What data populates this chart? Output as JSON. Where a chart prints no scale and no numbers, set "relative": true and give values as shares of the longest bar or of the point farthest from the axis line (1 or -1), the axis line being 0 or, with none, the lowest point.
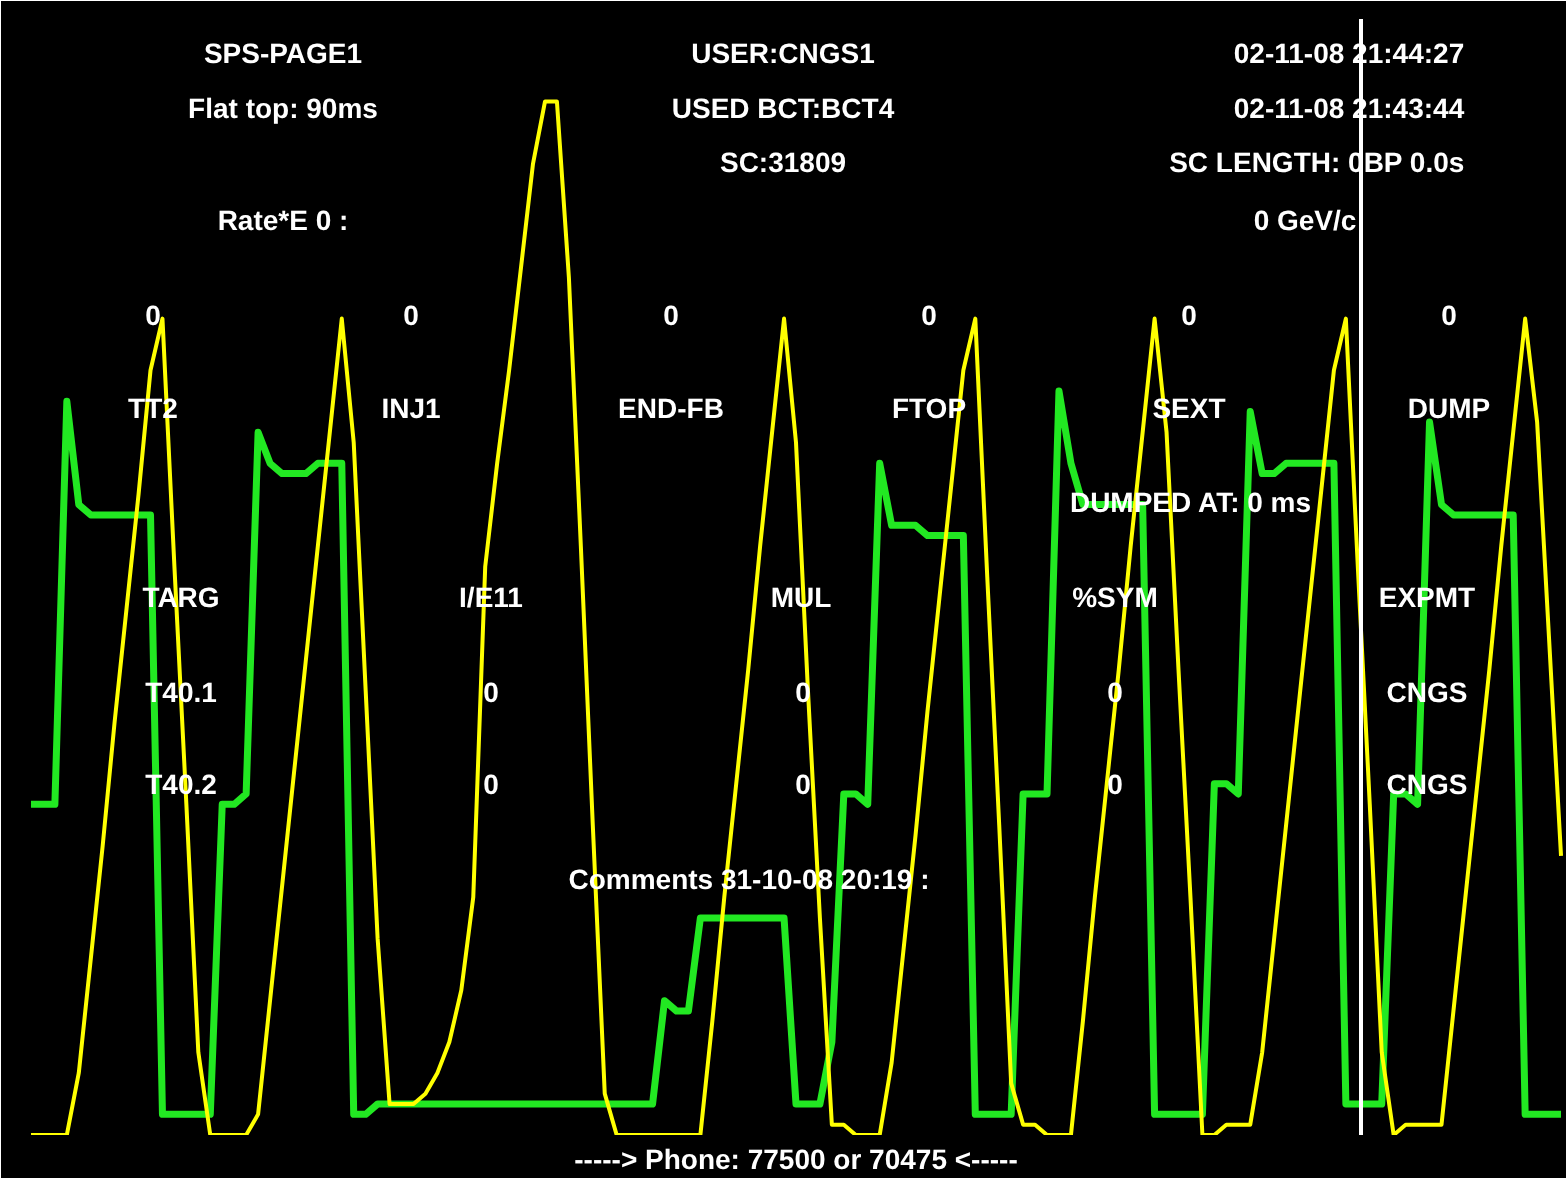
{
  "chart_data": {
    "type": "line",
    "relative": true,
    "title": "SPS-PAGE1",
    "annotations": [
      "USER:CNGS1",
      "02-11-08 21:44:27",
      "Flat top: 90ms",
      "USED BCT:BCT4",
      "02-11-08 21:43:44",
      "SC:31809",
      "SC LENGTH: 0BP 0.0s",
      "Rate*E 0 :",
      "0 GeV/c",
      "0",
      "0",
      "0",
      "0",
      "0",
      "0",
      "TT2",
      "INJ1",
      "END-FB",
      "FTOP",
      "SEXT",
      "DUMP",
      "DUMPED AT: 0 ms",
      "TARG",
      "I/E11",
      "MUL",
      "%SYM",
      "EXPMT",
      "T40.1",
      "0",
      "0",
      "0",
      "CNGS",
      "T40.2",
      "0",
      "0",
      "0",
      "CNGS",
      "Comments 31-10-08 20:19 :",
      "-----> Phone: 77500 or 70475 <-----"
    ],
    "categories": [
      null,
      null,
      null,
      null,
      null,
      null,
      null,
      null,
      null,
      null,
      null,
      null,
      null,
      null,
      null,
      null,
      null,
      null,
      null,
      null,
      null,
      null,
      null,
      null,
      null,
      null,
      null,
      null,
      null,
      null,
      null,
      null,
      null,
      null,
      null,
      null,
      null,
      null,
      null,
      null,
      null,
      null,
      null,
      null,
      null,
      null,
      null,
      null,
      null,
      null,
      null,
      null,
      null,
      null,
      null,
      null,
      null,
      null,
      null,
      null,
      null,
      null,
      null,
      null,
      null,
      null,
      null,
      null,
      null,
      null,
      null,
      null,
      null,
      null,
      null,
      null,
      null,
      null,
      null,
      null,
      null,
      null,
      null,
      null,
      null,
      null,
      null,
      null,
      null,
      null,
      null,
      null,
      null,
      null,
      null,
      null,
      null,
      null,
      null,
      null,
      null,
      null,
      null,
      null,
      null,
      null,
      null,
      null,
      null,
      null,
      null,
      null,
      null,
      null,
      null,
      null,
      null,
      null,
      null,
      null,
      null,
      null,
      null,
      null,
      null,
      null,
      null,
      null,
      null
    ],
    "tick_labels": false,
    "line_style": "solid",
    "series": [
      {
        "color": "#22e822",
        "values": [
          0.32,
          0.32,
          0.32,
          0.71,
          0.61,
          0.6,
          0.6,
          0.6,
          0.6,
          0.6,
          0.6,
          0.02,
          0.02,
          0.02,
          0.02,
          0.02,
          0.32,
          0.32,
          0.33,
          0.68,
          0.65,
          0.64,
          0.64,
          0.64,
          0.65,
          0.65,
          0.65,
          0.02,
          0.02,
          0.03,
          0.03,
          0.03,
          0.03,
          0.03,
          0.03,
          0.03,
          0.03,
          0.03,
          0.03,
          0.03,
          0.03,
          0.03,
          0.03,
          0.03,
          0.03,
          0.03,
          0.03,
          0.03,
          0.03,
          0.03,
          0.03,
          0.03,
          0.03,
          0.13,
          0.12,
          0.12,
          0.21,
          0.21,
          0.21,
          0.21,
          0.21,
          0.21,
          0.21,
          0.21,
          0.03,
          0.03,
          0.03,
          0.09,
          0.33,
          0.33,
          0.32,
          0.65,
          0.59,
          0.59,
          0.59,
          0.58,
          0.58,
          0.58,
          0.58,
          0.02,
          0.02,
          0.02,
          0.02,
          0.33,
          0.33,
          0.33,
          0.72,
          0.65,
          0.61,
          0.61,
          0.61,
          0.61,
          0.61,
          0.61,
          0.02,
          0.02,
          0.02,
          0.02,
          0.02,
          0.34,
          0.34,
          0.33,
          0.7,
          0.64,
          0.64,
          0.65,
          0.65,
          0.65,
          0.65,
          0.65,
          0.03,
          0.03,
          0.03,
          0.03,
          0.33,
          0.33,
          0.32,
          0.69,
          0.61,
          0.6,
          0.6,
          0.6,
          0.6,
          0.6,
          0.6,
          0.02,
          0.02,
          0.02,
          0.02
        ]
      },
      {
        "color": "#ffff00",
        "values": [
          0,
          0,
          0,
          0,
          0.06,
          0.17,
          0.28,
          0.4,
          0.51,
          0.62,
          0.74,
          0.79,
          0.55,
          0.32,
          0.08,
          0,
          0,
          0,
          0,
          0.02,
          0.13,
          0.24,
          0.35,
          0.46,
          0.57,
          0.68,
          0.79,
          0.67,
          0.43,
          0.19,
          0.03,
          0.03,
          0.03,
          0.04,
          0.06,
          0.09,
          0.14,
          0.23,
          0.55,
          0.65,
          0.74,
          0.84,
          0.94,
          1,
          1,
          0.83,
          0.57,
          0.3,
          0.04,
          0,
          0,
          0,
          0,
          0,
          0,
          0,
          0,
          0.11,
          0.23,
          0.34,
          0.45,
          0.57,
          0.68,
          0.79,
          0.67,
          0.43,
          0.21,
          0.01,
          0.01,
          0,
          0,
          0,
          0.07,
          0.18,
          0.29,
          0.41,
          0.52,
          0.63,
          0.74,
          0.79,
          0.54,
          0.3,
          0.05,
          0.01,
          0.01,
          0,
          0,
          0,
          0.11,
          0.23,
          0.34,
          0.45,
          0.57,
          0.68,
          0.79,
          0.68,
          0.45,
          0.23,
          0,
          0,
          0.01,
          0.01,
          0.01,
          0.08,
          0.19,
          0.3,
          0.41,
          0.52,
          0.63,
          0.74,
          0.79,
          0.55,
          0.32,
          0.08,
          0,
          0.01,
          0.01,
          0.01,
          0.01,
          0.12,
          0.23,
          0.34,
          0.45,
          0.57,
          0.68,
          0.79,
          0.69,
          0.48,
          0.27
        ]
      }
    ]
  }
}
